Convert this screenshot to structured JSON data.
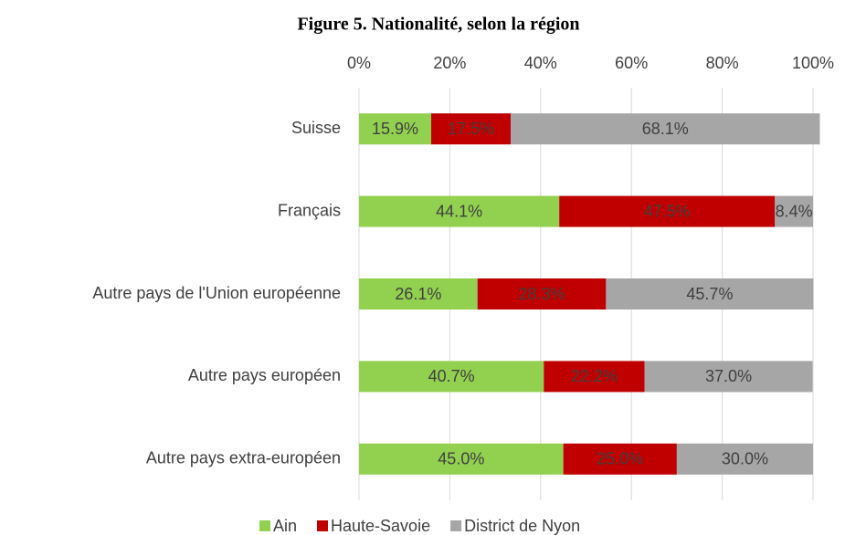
{
  "chart_data": {
    "type": "bar",
    "orientation": "horizontal",
    "stacked": true,
    "title": "Figure 5. Nationalité, selon la région",
    "categories": [
      "Suisse",
      "Français",
      "Autre pays de l'Union européenne",
      "Autre pays européen",
      "Autre pays extra-européen"
    ],
    "series": [
      {
        "name": "Ain",
        "color": "#92d050",
        "values": [
          15.9,
          44.1,
          26.1,
          40.7,
          45.0
        ],
        "value_labels": [
          "15.9%",
          "44.1%",
          "26.1%",
          "40.7%",
          "45.0%"
        ]
      },
      {
        "name": "Haute-Savoie",
        "color": "#c00000",
        "values": [
          17.5,
          47.5,
          28.3,
          22.2,
          25.0
        ],
        "value_labels": [
          "17.5%",
          "47.5%",
          "28.3%",
          "22.2%",
          "25.0%"
        ]
      },
      {
        "name": "District de Nyon",
        "color": "#a6a6a6",
        "values": [
          68.1,
          8.4,
          45.7,
          37.0,
          30.0
        ],
        "value_labels": [
          "68.1%",
          "8.4%",
          "45.7%",
          "37.0%",
          "30.0%"
        ]
      }
    ],
    "xlim": [
      0,
      100
    ],
    "xticks": [
      {
        "value": 0,
        "label": "0%"
      },
      {
        "value": 20,
        "label": "20%"
      },
      {
        "value": 40,
        "label": "40%"
      },
      {
        "value": 60,
        "label": "60%"
      },
      {
        "value": 80,
        "label": "80%"
      },
      {
        "value": 100,
        "label": "100%"
      }
    ],
    "grid": true,
    "legend": "bottom"
  }
}
